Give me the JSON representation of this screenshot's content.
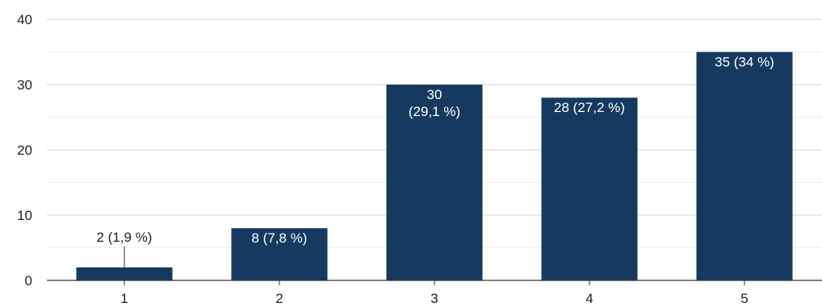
{
  "chart_data": {
    "type": "bar",
    "categories": [
      "1",
      "2",
      "3",
      "4",
      "5"
    ],
    "values": [
      2,
      8,
      30,
      28,
      35
    ],
    "data_labels": [
      [
        "2 (1,9 %)"
      ],
      [
        "8 (7,8 %)"
      ],
      [
        "30",
        "(29,1 %)"
      ],
      [
        "28 (27,2 %)"
      ],
      [
        "35 (34 %)"
      ]
    ],
    "y_ticks": [
      "0",
      "10",
      "20",
      "30",
      "40"
    ],
    "ylim": [
      0,
      40
    ],
    "minor_gridlines": true,
    "bar_color": "#163a5f",
    "title": "",
    "xlabel": "",
    "ylabel": ""
  }
}
